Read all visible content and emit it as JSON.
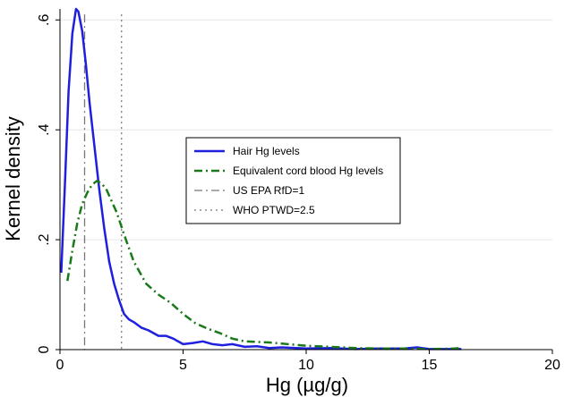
{
  "chart_data": {
    "type": "line",
    "xlabel": "Hg (µg/g)",
    "ylabel": "Kernel density",
    "xlim": [
      0,
      20
    ],
    "ylim": [
      0,
      0.62
    ],
    "xticks": [
      0,
      5,
      10,
      15,
      20
    ],
    "xtick_labels": [
      "0",
      "5",
      "10",
      "15",
      "20"
    ],
    "yticks": [
      0,
      0.2,
      0.4,
      0.6
    ],
    "ytick_labels": [
      "0",
      ".2",
      ".4",
      ".6"
    ],
    "grid": "horizontal",
    "legend_position": "center-right",
    "series": [
      {
        "name": "Hair Hg levels",
        "color": "#1f1fe0",
        "style": "solid",
        "x": [
          0.05,
          0.2,
          0.35,
          0.5,
          0.65,
          0.75,
          0.9,
          1.05,
          1.2,
          1.4,
          1.6,
          1.8,
          2.0,
          2.2,
          2.4,
          2.6,
          2.8,
          3.0,
          3.3,
          3.6,
          4.0,
          4.3,
          4.6,
          5.0,
          5.4,
          5.8,
          6.2,
          6.6,
          7.0,
          7.5,
          8.0,
          8.5,
          9.0,
          10.0,
          11.0,
          12.0,
          13.0,
          14.0,
          14.5,
          15.0,
          16.0,
          16.3
        ],
        "values": [
          0.14,
          0.3,
          0.47,
          0.575,
          0.62,
          0.615,
          0.58,
          0.52,
          0.45,
          0.37,
          0.29,
          0.22,
          0.16,
          0.12,
          0.09,
          0.065,
          0.055,
          0.05,
          0.04,
          0.035,
          0.025,
          0.025,
          0.02,
          0.01,
          0.012,
          0.015,
          0.01,
          0.008,
          0.01,
          0.005,
          0.006,
          0.003,
          0.004,
          0.002,
          0.003,
          0.001,
          0.002,
          0.002,
          0.004,
          0.001,
          0.001,
          0.001
        ]
      },
      {
        "name": "Equivalent cord blood Hg levels",
        "color": "#1a7a1a",
        "style": "dash-dot",
        "x": [
          0.3,
          0.5,
          0.7,
          0.9,
          1.1,
          1.3,
          1.5,
          1.7,
          1.9,
          2.1,
          2.3,
          2.6,
          3.0,
          3.5,
          4.0,
          4.5,
          5.0,
          5.5,
          6.0,
          6.5,
          7.0,
          7.5,
          8.0,
          8.5,
          9.0,
          10.0,
          11.0,
          12.0,
          13.0,
          14.0,
          15.0,
          16.0,
          16.3
        ],
        "values": [
          0.125,
          0.18,
          0.23,
          0.265,
          0.285,
          0.3,
          0.307,
          0.302,
          0.29,
          0.27,
          0.25,
          0.21,
          0.16,
          0.12,
          0.1,
          0.085,
          0.065,
          0.048,
          0.038,
          0.03,
          0.02,
          0.015,
          0.014,
          0.013,
          0.011,
          0.007,
          0.005,
          0.003,
          0.002,
          0.002,
          0.001,
          0.002,
          0.003
        ]
      }
    ],
    "reference_lines": [
      {
        "name": "US EPA RfD=1",
        "x": 1,
        "color": "#777777",
        "style": "dash-dot"
      },
      {
        "name": "WHO PTWD=2.5",
        "x": 2.5,
        "color": "#777777",
        "style": "dotted"
      }
    ],
    "legend": [
      {
        "label": "Hair Hg levels",
        "style": "solid",
        "color": "#1f1fe0"
      },
      {
        "label": "Equivalent cord blood Hg levels",
        "style": "dash-dot",
        "color": "#1a7a1a"
      },
      {
        "label": "US EPA RfD=1",
        "style": "dash-dot",
        "color": "#777777"
      },
      {
        "label": "WHO PTWD=2.5",
        "style": "dotted",
        "color": "#777777"
      }
    ]
  }
}
